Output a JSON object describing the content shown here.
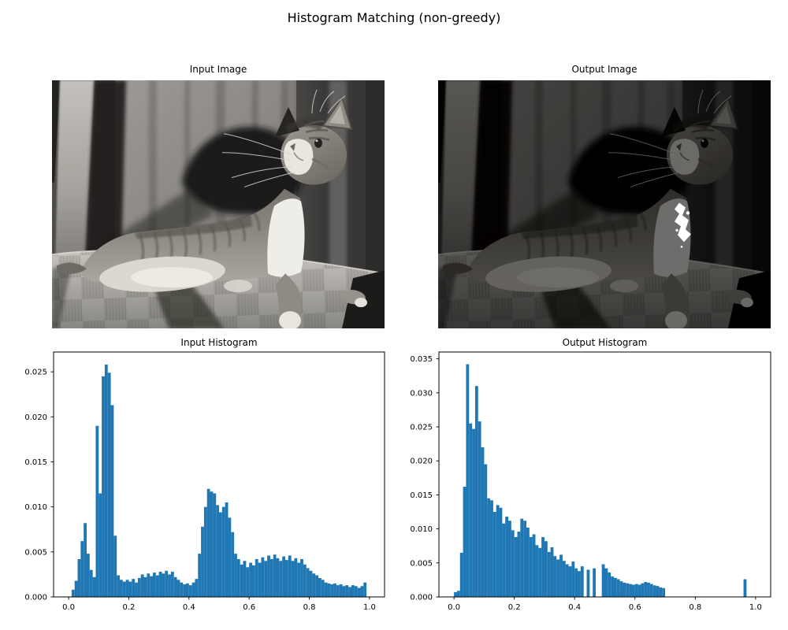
{
  "figure": {
    "suptitle": "Histogram Matching (non-greedy)",
    "background": "#ffffff",
    "text_color": "#000000"
  },
  "panels": {
    "input_image": {
      "title": "Input Image",
      "content": "grayscale photo of a tabby cat lying on the back of a checkered sofa, head raised looking up, curtain background with bright vertical stripe at left"
    },
    "output_image": {
      "title": "Output Image",
      "content": "same cat photo after histogram matching: much darker overall with clipped bright white blob on the cat's chest"
    },
    "input_histogram": {
      "title": "Input Histogram"
    },
    "output_histogram": {
      "title": "Output Histogram"
    }
  },
  "chart_data": [
    {
      "id": "input_histogram",
      "type": "bar",
      "title": "Input Histogram",
      "bar_color": "#1f77b4",
      "bin_start": 0.0,
      "bin_width": 0.01,
      "xlim": [
        -0.05,
        1.05
      ],
      "ylim": [
        0,
        0.0272
      ],
      "grid": false,
      "legend": null,
      "xticks": {
        "values": [
          0.0,
          0.2,
          0.4,
          0.6,
          0.8,
          1.0
        ],
        "labels": [
          "0.0",
          "0.2",
          "0.4",
          "0.6",
          "0.8",
          "1.0"
        ]
      },
      "yticks": {
        "values": [
          0.0,
          0.005,
          0.01,
          0.015,
          0.02,
          0.025
        ],
        "labels": [
          "0.000",
          "0.005",
          "0.010",
          "0.015",
          "0.020",
          "0.025"
        ]
      },
      "values": [
        0,
        0.0008,
        0.0018,
        0.0042,
        0.0062,
        0.0082,
        0.0048,
        0.003,
        0.0022,
        0.019,
        0.0115,
        0.0245,
        0.0258,
        0.0249,
        0.0213,
        0.0068,
        0.0024,
        0.0019,
        0.0017,
        0.0019,
        0.0017,
        0.002,
        0.0016,
        0.0021,
        0.0025,
        0.0022,
        0.0026,
        0.0023,
        0.0027,
        0.0024,
        0.0028,
        0.0026,
        0.0029,
        0.0025,
        0.0028,
        0.0022,
        0.0019,
        0.0016,
        0.0014,
        0.0015,
        0.0013,
        0.0016,
        0.002,
        0.0048,
        0.0078,
        0.01,
        0.012,
        0.0117,
        0.0115,
        0.0102,
        0.0094,
        0.01,
        0.0105,
        0.0088,
        0.0072,
        0.0048,
        0.0042,
        0.0036,
        0.004,
        0.0033,
        0.0038,
        0.0035,
        0.0042,
        0.0038,
        0.0044,
        0.004,
        0.0046,
        0.0042,
        0.0047,
        0.0043,
        0.004,
        0.0045,
        0.0041,
        0.0046,
        0.004,
        0.0043,
        0.0038,
        0.0042,
        0.0036,
        0.0032,
        0.0029,
        0.0026,
        0.0024,
        0.0021,
        0.0019,
        0.0016,
        0.0015,
        0.0014,
        0.0015,
        0.0013,
        0.0014,
        0.0012,
        0.0013,
        0.0011,
        0.0013,
        0.0012,
        0.001,
        0.0012,
        0.0016,
        0
      ]
    },
    {
      "id": "output_histogram",
      "type": "bar",
      "title": "Output Histogram",
      "bar_color": "#1f77b4",
      "bin_start": 0.0,
      "bin_width": 0.01,
      "xlim": [
        -0.05,
        1.05
      ],
      "ylim": [
        0,
        0.036
      ],
      "grid": false,
      "legend": null,
      "xticks": {
        "values": [
          0.0,
          0.2,
          0.4,
          0.6,
          0.8,
          1.0
        ],
        "labels": [
          "0.0",
          "0.2",
          "0.4",
          "0.6",
          "0.8",
          "1.0"
        ]
      },
      "yticks": {
        "values": [
          0.0,
          0.005,
          0.01,
          0.015,
          0.02,
          0.025,
          0.03,
          0.035
        ],
        "labels": [
          "0.000",
          "0.005",
          "0.010",
          "0.015",
          "0.020",
          "0.025",
          "0.030",
          "0.035"
        ]
      },
      "values": [
        0.0007,
        0.0009,
        0.0065,
        0.0162,
        0.0342,
        0.0255,
        0.0247,
        0.031,
        0.0258,
        0.022,
        0.0195,
        0.0145,
        0.0142,
        0.0125,
        0.0135,
        0.0131,
        0.0108,
        0.0118,
        0.0112,
        0.0098,
        0.0088,
        0.0096,
        0.0115,
        0.0112,
        0.0102,
        0.0088,
        0.0092,
        0.0076,
        0.0072,
        0.0088,
        0.0082,
        0.0066,
        0.0073,
        0.006,
        0.0055,
        0.0062,
        0.0053,
        0.0048,
        0.0045,
        0.0052,
        0.0042,
        0.0038,
        0.0045,
        0,
        0.004,
        0,
        0.0042,
        0,
        0,
        0.0048,
        0.0042,
        0.0036,
        0.003,
        0.0028,
        0.0026,
        0.0023,
        0.0021,
        0.002,
        0.0019,
        0.0018,
        0.0019,
        0.0018,
        0.002,
        0.0022,
        0.0021,
        0.0019,
        0.0017,
        0.0016,
        0.0014,
        0.0013,
        0,
        0,
        0,
        0,
        0,
        0,
        0,
        0,
        0,
        0,
        0,
        0,
        0,
        0,
        0,
        0,
        0,
        0,
        0,
        0,
        0,
        0,
        0,
        0,
        0,
        0,
        0.0026,
        0,
        0,
        0
      ]
    }
  ]
}
